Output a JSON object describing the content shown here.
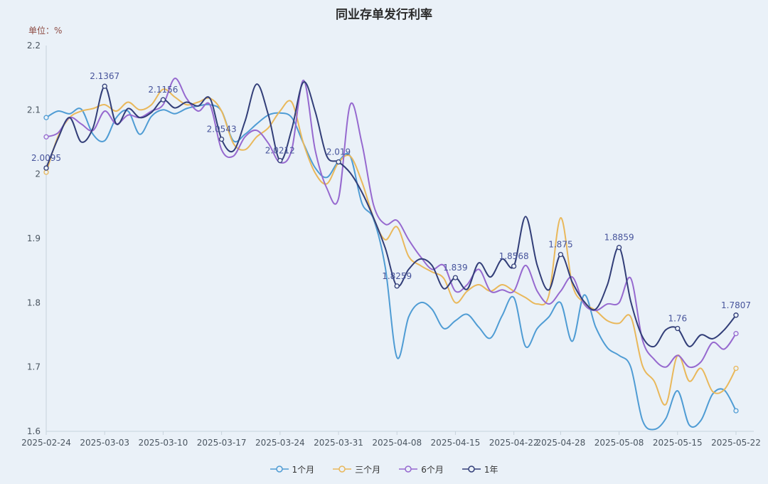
{
  "title": "同业存单发行利率",
  "unit_label": "单位：%",
  "background_color": "#eaf1f8",
  "chart_data": {
    "type": "line",
    "x": [
      "2025-02-24",
      "2025-02-25",
      "2025-02-26",
      "2025-02-27",
      "2025-02-28",
      "2025-03-03",
      "2025-03-04",
      "2025-03-05",
      "2025-03-06",
      "2025-03-07",
      "2025-03-10",
      "2025-03-11",
      "2025-03-12",
      "2025-03-13",
      "2025-03-14",
      "2025-03-17",
      "2025-03-18",
      "2025-03-19",
      "2025-03-20",
      "2025-03-21",
      "2025-03-24",
      "2025-03-25",
      "2025-03-26",
      "2025-03-27",
      "2025-03-28",
      "2025-03-31",
      "2025-04-01",
      "2025-04-02",
      "2025-04-03",
      "2025-04-07",
      "2025-04-08",
      "2025-04-09",
      "2025-04-10",
      "2025-04-11",
      "2025-04-14",
      "2025-04-15",
      "2025-04-16",
      "2025-04-17",
      "2025-04-18",
      "2025-04-21",
      "2025-04-22",
      "2025-04-23",
      "2025-04-24",
      "2025-04-25",
      "2025-04-28",
      "2025-04-29",
      "2025-04-30",
      "2025-05-06",
      "2025-05-07",
      "2025-05-08",
      "2025-05-09",
      "2025-05-12",
      "2025-05-13",
      "2025-05-14",
      "2025-05-15",
      "2025-05-16",
      "2025-05-19",
      "2025-05-20",
      "2025-05-21",
      "2025-05-22"
    ],
    "xticks": [
      "2025-02-24",
      "2025-03-03",
      "2025-03-10",
      "2025-03-17",
      "2025-03-24",
      "2025-03-31",
      "2025-04-08",
      "2025-04-15",
      "2025-04-22",
      "2025-04-28",
      "2025-05-08",
      "2025-05-15",
      "2025-05-22"
    ],
    "yticks": [
      "1.6",
      "1.7",
      "1.8",
      "1.9",
      "2",
      "2.1",
      "2.2"
    ],
    "ylim": [
      1.6,
      2.2
    ],
    "grid": false,
    "legend_position": "bottom",
    "series": [
      {
        "name": "1个月",
        "color": "#4f9cd4",
        "values": [
          2.088,
          2.098,
          2.094,
          2.101,
          2.062,
          2.052,
          2.088,
          2.098,
          2.062,
          2.09,
          2.1,
          2.094,
          2.102,
          2.106,
          2.108,
          2.098,
          2.052,
          2.062,
          2.078,
          2.092,
          2.095,
          2.088,
          2.048,
          2.01,
          1.995,
          2.02,
          2.028,
          1.955,
          1.93,
          1.855,
          1.715,
          1.778,
          1.8,
          1.79,
          1.76,
          1.772,
          1.782,
          1.762,
          1.745,
          1.78,
          1.808,
          1.732,
          1.76,
          1.778,
          1.8,
          1.74,
          1.812,
          1.762,
          1.73,
          1.718,
          1.7,
          1.617,
          1.603,
          1.62,
          1.663,
          1.61,
          1.617,
          1.658,
          1.664,
          1.632
        ]
      },
      {
        "name": "三个月",
        "color": "#e9b85b",
        "values": [
          2.003,
          2.058,
          2.088,
          2.098,
          2.102,
          2.108,
          2.098,
          2.112,
          2.1,
          2.108,
          2.132,
          2.12,
          2.108,
          2.112,
          2.118,
          2.098,
          2.048,
          2.038,
          2.058,
          2.072,
          2.098,
          2.112,
          2.048,
          2.002,
          1.985,
          2.018,
          2.028,
          1.988,
          1.932,
          1.898,
          1.918,
          1.872,
          1.858,
          1.848,
          1.838,
          1.8,
          1.818,
          1.828,
          1.818,
          1.828,
          1.818,
          1.808,
          1.798,
          1.812,
          1.932,
          1.828,
          1.8,
          1.788,
          1.772,
          1.768,
          1.778,
          1.702,
          1.678,
          1.642,
          1.718,
          1.678,
          1.698,
          1.662,
          1.665,
          1.698
        ]
      },
      {
        "name": "6个月",
        "color": "#9669cf",
        "values": [
          2.058,
          2.064,
          2.088,
          2.078,
          2.068,
          2.098,
          2.078,
          2.092,
          2.088,
          2.098,
          2.108,
          2.149,
          2.118,
          2.098,
          2.108,
          2.038,
          2.028,
          2.058,
          2.068,
          2.048,
          2.018,
          2.038,
          2.146,
          2.038,
          1.978,
          1.962,
          2.108,
          2.048,
          1.952,
          1.922,
          1.928,
          1.898,
          1.872,
          1.852,
          1.858,
          1.818,
          1.828,
          1.852,
          1.818,
          1.82,
          1.818,
          1.858,
          1.818,
          1.798,
          1.818,
          1.84,
          1.798,
          1.788,
          1.798,
          1.8,
          1.838,
          1.742,
          1.712,
          1.7,
          1.718,
          1.7,
          1.708,
          1.738,
          1.728,
          1.752
        ]
      },
      {
        "name": "1年",
        "color": "#323e78",
        "values": [
          2.0095,
          2.055,
          2.088,
          2.05,
          2.072,
          2.1367,
          2.078,
          2.102,
          2.088,
          2.096,
          2.1156,
          2.103,
          2.112,
          2.106,
          2.118,
          2.0543,
          2.036,
          2.082,
          2.14,
          2.092,
          2.0212,
          2.07,
          2.143,
          2.098,
          2.028,
          2.019,
          2.002,
          1.972,
          1.932,
          1.885,
          1.8259,
          1.852,
          1.868,
          1.858,
          1.822,
          1.839,
          1.821,
          1.862,
          1.84,
          1.868,
          1.8568,
          1.934,
          1.858,
          1.82,
          1.875,
          1.832,
          1.802,
          1.79,
          1.828,
          1.8859,
          1.802,
          1.747,
          1.732,
          1.758,
          1.76,
          1.732,
          1.75,
          1.744,
          1.758,
          1.7807
        ]
      }
    ],
    "annotations": [
      {
        "date": "2025-02-24",
        "text": "2.0095"
      },
      {
        "date": "2025-03-03",
        "text": "2.1367"
      },
      {
        "date": "2025-03-10",
        "text": "2.1156"
      },
      {
        "date": "2025-03-17",
        "text": "2.0543"
      },
      {
        "date": "2025-03-24",
        "text": "2.0212"
      },
      {
        "date": "2025-03-31",
        "text": "2.019"
      },
      {
        "date": "2025-04-08",
        "text": "1.8259"
      },
      {
        "date": "2025-04-15",
        "text": "1.839"
      },
      {
        "date": "2025-04-22",
        "text": "1.8568"
      },
      {
        "date": "2025-04-28",
        "text": "1.875"
      },
      {
        "date": "2025-05-08",
        "text": "1.8859"
      },
      {
        "date": "2025-05-15",
        "text": "1.76"
      },
      {
        "date": "2025-05-22",
        "text": "1.7807"
      }
    ]
  },
  "legend": {
    "items": [
      {
        "label": "1个月"
      },
      {
        "label": "三个月"
      },
      {
        "label": "6个月"
      },
      {
        "label": "1年"
      }
    ]
  }
}
